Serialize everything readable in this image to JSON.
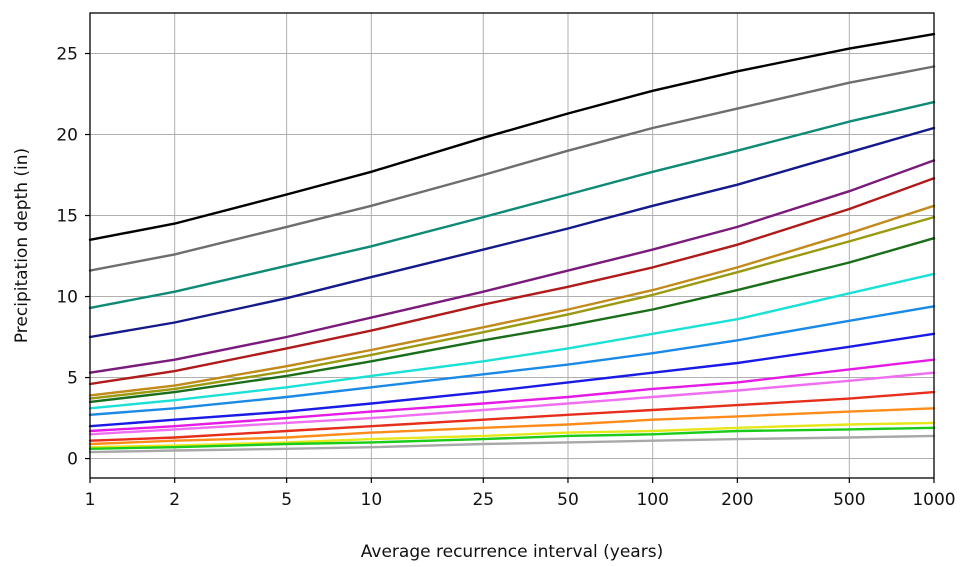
{
  "chart_data": {
    "type": "line",
    "title": "",
    "xlabel": "Average recurrence interval (years)",
    "ylabel": "Precipitation depth (in)",
    "x_scale": "log",
    "x": [
      1,
      2,
      5,
      10,
      25,
      50,
      100,
      200,
      500,
      1000
    ],
    "x_tick_labels": [
      "1",
      "2",
      "5",
      "10",
      "25",
      "50",
      "100",
      "200",
      "500",
      "1000"
    ],
    "xlim": [
      1,
      1000
    ],
    "ylim": [
      -1.2,
      27.5
    ],
    "y_ticks": [
      0,
      5,
      10,
      15,
      20,
      25
    ],
    "y_tick_labels": [
      "0",
      "5",
      "10",
      "15",
      "20",
      "25"
    ],
    "grid": true,
    "series": [
      {
        "color": "#000000",
        "values": [
          13.5,
          14.5,
          16.3,
          17.7,
          19.8,
          21.3,
          22.7,
          23.9,
          25.3,
          26.2
        ]
      },
      {
        "color": "#6e6e6e",
        "values": [
          11.6,
          12.6,
          14.3,
          15.6,
          17.5,
          19.0,
          20.4,
          21.6,
          23.2,
          24.2
        ]
      },
      {
        "color": "#0f8a76",
        "values": [
          9.3,
          10.3,
          11.9,
          13.1,
          14.9,
          16.3,
          17.7,
          19.0,
          20.8,
          22.0
        ]
      },
      {
        "color": "#141a8a",
        "values": [
          7.5,
          8.4,
          9.9,
          11.2,
          12.9,
          14.2,
          15.6,
          16.9,
          18.9,
          20.4
        ]
      },
      {
        "color": "#7a1a7a",
        "values": [
          5.3,
          6.1,
          7.5,
          8.7,
          10.3,
          11.6,
          12.9,
          14.3,
          16.5,
          18.4
        ]
      },
      {
        "color": "#b01a1a",
        "values": [
          4.6,
          5.4,
          6.8,
          7.9,
          9.5,
          10.6,
          11.8,
          13.2,
          15.4,
          17.3
        ]
      },
      {
        "color": "#c28a1a",
        "values": [
          3.9,
          4.5,
          5.7,
          6.7,
          8.1,
          9.2,
          10.4,
          11.8,
          13.9,
          15.6
        ]
      },
      {
        "color": "#9a9a10",
        "values": [
          3.7,
          4.3,
          5.4,
          6.4,
          7.8,
          8.9,
          10.1,
          11.5,
          13.4,
          14.9
        ]
      },
      {
        "color": "#1a6e1a",
        "values": [
          3.5,
          4.1,
          5.1,
          6.0,
          7.3,
          8.2,
          9.2,
          10.4,
          12.1,
          13.6
        ]
      },
      {
        "color": "#1ae0d6",
        "values": [
          3.1,
          3.6,
          4.4,
          5.1,
          6.0,
          6.8,
          7.7,
          8.6,
          10.2,
          11.4
        ]
      },
      {
        "color": "#1a8ae6",
        "values": [
          2.7,
          3.1,
          3.8,
          4.4,
          5.2,
          5.8,
          6.5,
          7.3,
          8.5,
          9.4
        ]
      },
      {
        "color": "#1a1ae6",
        "values": [
          2.0,
          2.4,
          2.9,
          3.4,
          4.1,
          4.7,
          5.3,
          5.9,
          6.9,
          7.7
        ]
      },
      {
        "color": "#e61ae6",
        "values": [
          1.7,
          2.0,
          2.5,
          2.9,
          3.4,
          3.8,
          4.3,
          4.7,
          5.5,
          6.1
        ]
      },
      {
        "color": "#f06ef0",
        "values": [
          1.5,
          1.8,
          2.2,
          2.5,
          3.0,
          3.4,
          3.8,
          4.2,
          4.8,
          5.3
        ]
      },
      {
        "color": "#e62e1a",
        "values": [
          1.1,
          1.3,
          1.7,
          2.0,
          2.4,
          2.7,
          3.0,
          3.3,
          3.7,
          4.1
        ]
      },
      {
        "color": "#ff8c1a",
        "values": [
          0.9,
          1.1,
          1.3,
          1.6,
          1.9,
          2.1,
          2.4,
          2.6,
          2.9,
          3.1
        ]
      },
      {
        "color": "#e6e61a",
        "values": [
          0.7,
          0.8,
          1.0,
          1.2,
          1.4,
          1.6,
          1.7,
          1.9,
          2.1,
          2.2
        ]
      },
      {
        "color": "#1acc1a",
        "values": [
          0.6,
          0.7,
          0.9,
          1.0,
          1.2,
          1.4,
          1.5,
          1.7,
          1.8,
          1.9
        ]
      },
      {
        "color": "#a8a8a8",
        "values": [
          0.4,
          0.5,
          0.6,
          0.7,
          0.9,
          1.0,
          1.1,
          1.2,
          1.3,
          1.4
        ]
      }
    ]
  }
}
